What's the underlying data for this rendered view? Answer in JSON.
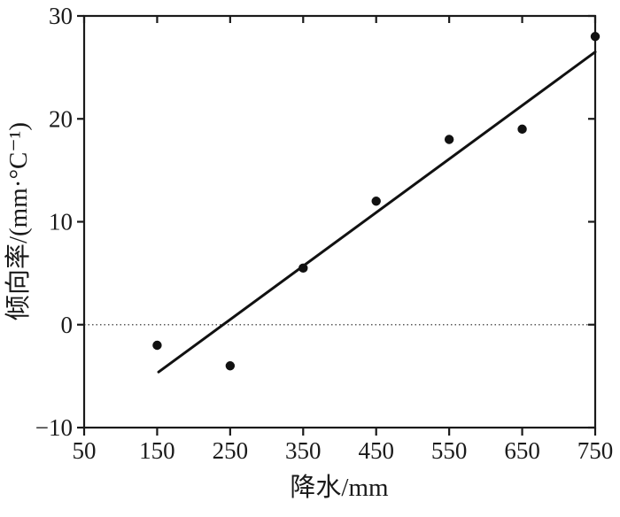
{
  "chart_data": {
    "type": "scatter",
    "title": "",
    "xlabel": "降水/mm",
    "ylabel": "倾向率/(mm·°C⁻¹)",
    "xlim": [
      50,
      750
    ],
    "ylim": [
      -10,
      30
    ],
    "xticks": [
      50,
      150,
      250,
      350,
      450,
      550,
      650,
      750
    ],
    "yticks": [
      -10,
      0,
      10,
      20,
      30
    ],
    "grid": false,
    "legend": "none",
    "frame": "full-box",
    "series": [
      {
        "name": "observed-points",
        "kind": "scatter",
        "marker": "filled-circle",
        "color": "#111111",
        "points": [
          {
            "x": 150,
            "y": -2
          },
          {
            "x": 250,
            "y": -4
          },
          {
            "x": 350,
            "y": 5.5
          },
          {
            "x": 450,
            "y": 12
          },
          {
            "x": 550,
            "y": 18
          },
          {
            "x": 650,
            "y": 19
          },
          {
            "x": 750,
            "y": 28
          }
        ]
      },
      {
        "name": "trend-line",
        "kind": "line",
        "color": "#111111",
        "points": [
          {
            "x": 152,
            "y": -4.6
          },
          {
            "x": 750,
            "y": 26.5
          }
        ]
      }
    ],
    "reference_line": {
      "y": 0,
      "style": "dotted",
      "color": "#595959"
    }
  },
  "colors": {
    "foreground": "#1a1a1a",
    "background": "#ffffff",
    "reference": "#595959"
  }
}
